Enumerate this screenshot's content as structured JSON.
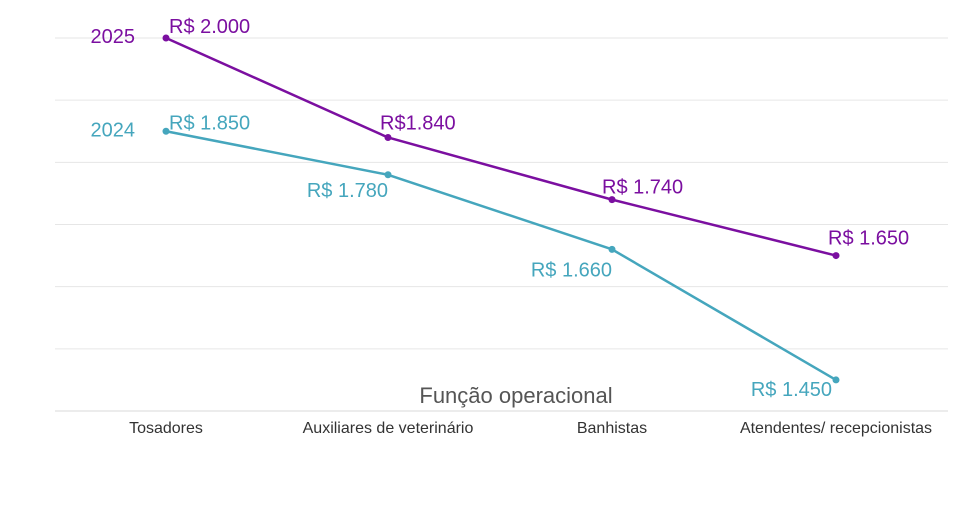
{
  "chart_data": {
    "type": "line",
    "categories": [
      "Tosadores",
      "Auxiliares de veterinário",
      "Banhistas",
      "Atendentes/ recepcionistas"
    ],
    "series": [
      {
        "name": "2025",
        "color": "#7b0fa0",
        "values": [
          2000,
          1840,
          1740,
          1650
        ],
        "labels": [
          "R$ 2.000",
          "R$1.840",
          "R$ 1.740",
          "R$ 1.650"
        ]
      },
      {
        "name": "2024",
        "color": "#45a6bd",
        "values": [
          1850,
          1780,
          1660,
          1450
        ],
        "labels": [
          "R$ 1.850",
          "R$ 1.780",
          "R$ 1.660",
          "R$ 1.450"
        ]
      }
    ],
    "xlabel": "Função operacional",
    "ylabel": "",
    "ylim": [
      1400,
      2000
    ],
    "grid": true,
    "legend": "inline-left"
  }
}
